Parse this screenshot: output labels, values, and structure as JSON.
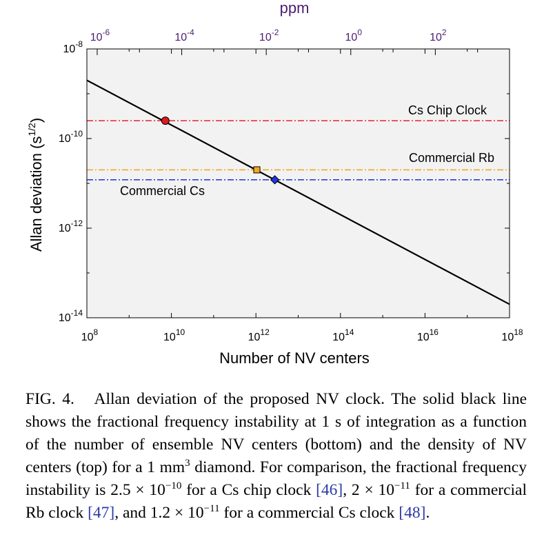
{
  "chart_data": {
    "type": "line",
    "x_axis": {
      "label": "Number of NV centers",
      "scale": "log",
      "range": [
        100000000.0,
        1e+18
      ],
      "ticks": [
        {
          "value": 100000000.0,
          "base": "10",
          "exp": "8"
        },
        {
          "value": 10000000000.0,
          "base": "10",
          "exp": "10"
        },
        {
          "value": 1000000000000.0,
          "base": "10",
          "exp": "12"
        },
        {
          "value": 100000000000000.0,
          "base": "10",
          "exp": "14"
        },
        {
          "value": 1e+16,
          "base": "10",
          "exp": "16"
        },
        {
          "value": 1e+18,
          "base": "10",
          "exp": "18"
        }
      ]
    },
    "top_axis": {
      "label": "ppm",
      "scale": "log",
      "range": [
        5.7e-07,
        5700.0
      ],
      "ticks": [
        {
          "value": 1e-06,
          "base": "10",
          "exp": "-6"
        },
        {
          "value": 0.0001,
          "base": "10",
          "exp": "-4"
        },
        {
          "value": 0.01,
          "base": "10",
          "exp": "-2"
        },
        {
          "value": 1.0,
          "base": "10",
          "exp": "0"
        },
        {
          "value": 100.0,
          "base": "10",
          "exp": "2"
        }
      ]
    },
    "y_axis": {
      "label_main": "Allan deviation  (s",
      "label_sup": "1/2",
      "label_end": ")",
      "scale": "log",
      "range": [
        1e-14,
        1e-08
      ],
      "ticks": [
        {
          "value": 1e-08,
          "base": "10",
          "exp": "-8"
        },
        {
          "value": 1e-10,
          "base": "10",
          "exp": "-10"
        },
        {
          "value": 1e-12,
          "base": "10",
          "exp": "-12"
        },
        {
          "value": 1e-14,
          "base": "10",
          "exp": "-14"
        }
      ]
    },
    "series": [
      {
        "name": "NV clock",
        "color": "#000000",
        "x": [
          100000000.0,
          1e+18
        ],
        "y": [
          2e-09,
          2e-14
        ]
      }
    ],
    "reference_lines": [
      {
        "name": "Cs Chip Clock",
        "value": 2.5e-10,
        "color": "#e8202a",
        "marker_x": 7200000000.0,
        "marker": "circle",
        "marker_color": "#e0171f"
      },
      {
        "name": "Commercial Rb",
        "value": 2e-11,
        "color": "#f0a828",
        "marker_x": 1050000000000.0,
        "marker": "square",
        "marker_color": "#f5a623"
      },
      {
        "name": "Commercial Cs",
        "value": 1.2e-11,
        "color": "#2b3fd8",
        "marker_x": 2800000000000.0,
        "marker": "diamond",
        "marker_color": "#2036e0"
      }
    ]
  },
  "caption": {
    "label": "FIG. 4.",
    "t1": "Allan deviation of the proposed NV clock. The solid black line shows the fractional frequency instability at 1 s of integration as a function of the number of ensemble NV centers (bottom) and the density of NV centers (top) for a 1 mm",
    "t1_sup": "3",
    "t2": " diamond. For comparison, the fractional frequency instability is 2.5 × 10",
    "sup1": "−10",
    "t3": " for a Cs chip clock ",
    "ref1": "[46]",
    "t4": ", 2 × 10",
    "sup2": "−11",
    "t5": " for a commercial Rb clock ",
    "ref2": "[47]",
    "t6": ", and 1.2 × 10",
    "sup3": "−11",
    "t7": " for a commercial Cs clock ",
    "ref3": "[48]",
    "t8": "."
  }
}
